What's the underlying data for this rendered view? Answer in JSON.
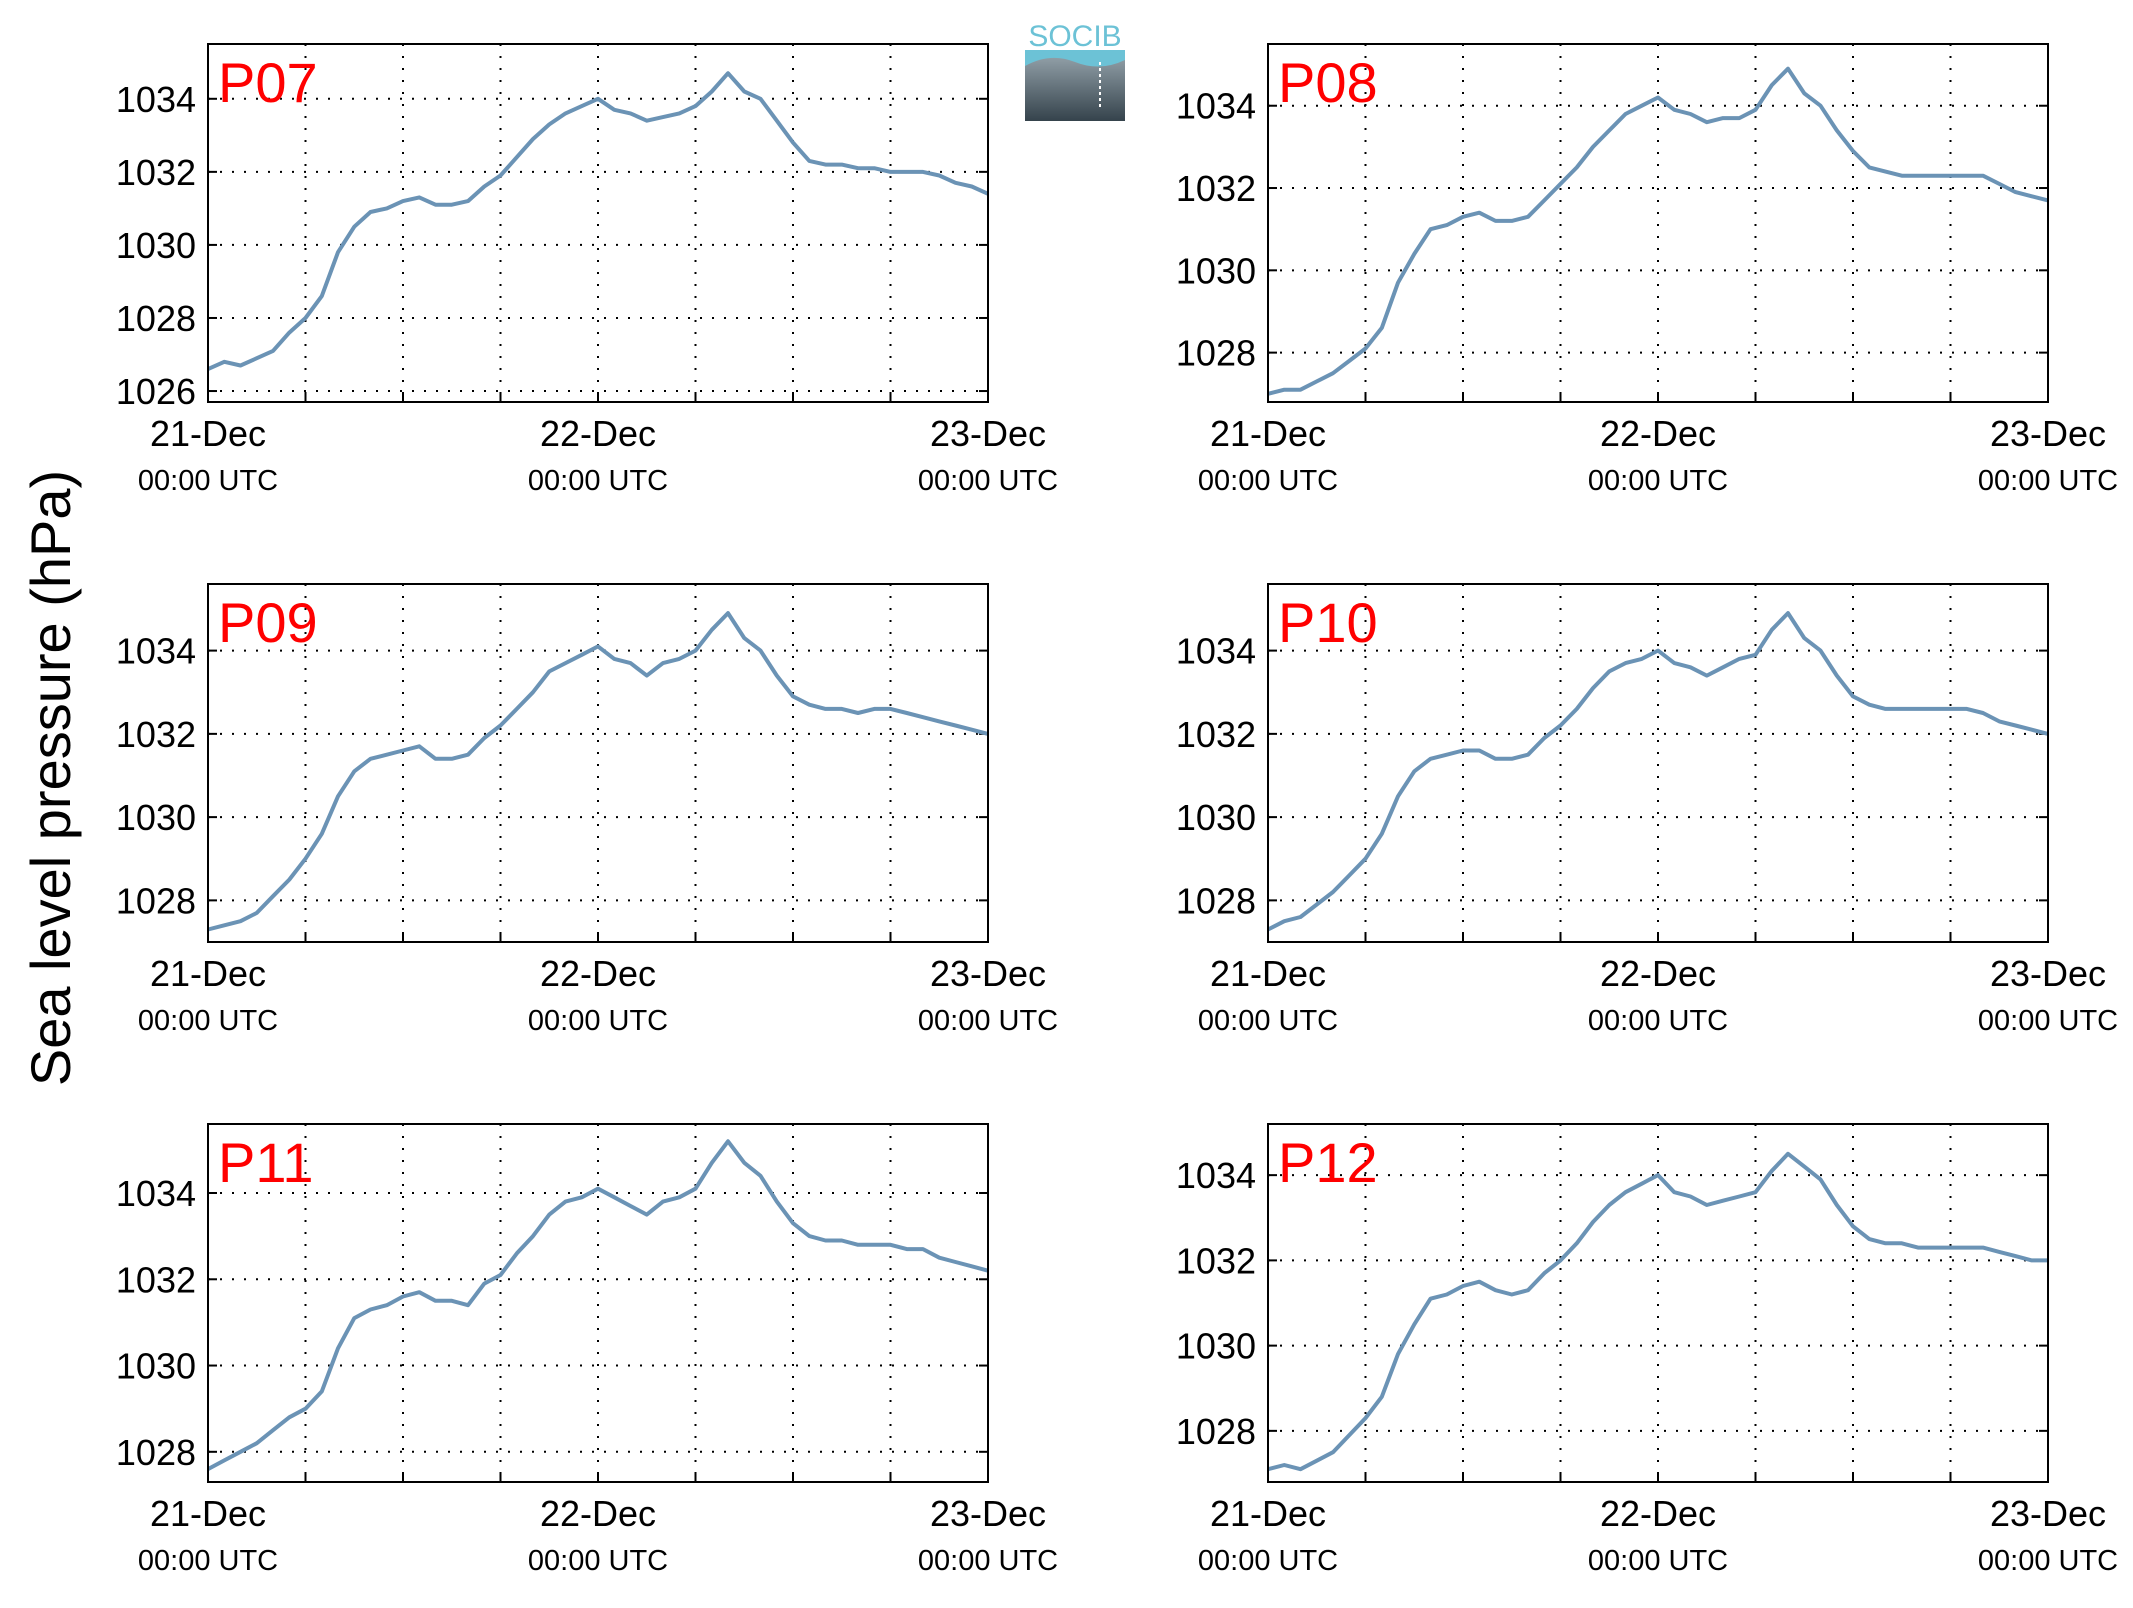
{
  "figure": {
    "ylabel": "Sea level pressure (hPa)",
    "logo_text": "SOCIB",
    "line_color": "#6b93b5",
    "label_color": "#ff0000",
    "x_ticks": [
      {
        "x": 0,
        "date": "21-Dec",
        "time": "00:00 UTC"
      },
      {
        "x": 24,
        "date": "22-Dec",
        "time": "00:00 UTC"
      },
      {
        "x": 48,
        "date": "23-Dec",
        "time": "00:00 UTC"
      }
    ]
  },
  "chart_data": [
    {
      "type": "line",
      "title": "P07",
      "xlim": [
        0,
        48
      ],
      "ylim": [
        1025.7,
        1035.5
      ],
      "yticks": [
        1026,
        1028,
        1030,
        1032,
        1034
      ],
      "x": [
        0,
        1,
        2,
        3,
        4,
        5,
        6,
        7,
        8,
        9,
        10,
        11,
        12,
        13,
        14,
        15,
        16,
        17,
        18,
        19,
        20,
        21,
        22,
        23,
        24,
        25,
        26,
        27,
        28,
        29,
        30,
        31,
        32,
        33,
        34,
        35,
        36,
        37,
        38,
        39,
        40,
        41,
        42,
        43,
        44,
        45,
        46,
        47,
        48
      ],
      "values": [
        1026.6,
        1026.8,
        1026.7,
        1026.9,
        1027.1,
        1027.6,
        1028.0,
        1028.6,
        1029.8,
        1030.5,
        1030.9,
        1031.0,
        1031.2,
        1031.3,
        1031.1,
        1031.1,
        1031.2,
        1031.6,
        1031.9,
        1032.4,
        1032.9,
        1033.3,
        1033.6,
        1033.8,
        1034.0,
        1033.7,
        1033.6,
        1033.4,
        1033.5,
        1033.6,
        1033.8,
        1034.2,
        1034.7,
        1034.2,
        1034.0,
        1033.4,
        1032.8,
        1032.3,
        1032.2,
        1032.2,
        1032.1,
        1032.1,
        1032.0,
        1032.0,
        1032.0,
        1031.9,
        1031.7,
        1031.6,
        1031.4
      ]
    },
    {
      "type": "line",
      "title": "P08",
      "xlim": [
        0,
        48
      ],
      "ylim": [
        1026.8,
        1035.5
      ],
      "yticks": [
        1028,
        1030,
        1032,
        1034
      ],
      "x": [
        0,
        1,
        2,
        3,
        4,
        5,
        6,
        7,
        8,
        9,
        10,
        11,
        12,
        13,
        14,
        15,
        16,
        17,
        18,
        19,
        20,
        21,
        22,
        23,
        24,
        25,
        26,
        27,
        28,
        29,
        30,
        31,
        32,
        33,
        34,
        35,
        36,
        37,
        38,
        39,
        40,
        41,
        42,
        43,
        44,
        45,
        46,
        47,
        48
      ],
      "values": [
        1027.0,
        1027.1,
        1027.1,
        1027.3,
        1027.5,
        1027.8,
        1028.1,
        1028.6,
        1029.7,
        1030.4,
        1031.0,
        1031.1,
        1031.3,
        1031.4,
        1031.2,
        1031.2,
        1031.3,
        1031.7,
        1032.1,
        1032.5,
        1033.0,
        1033.4,
        1033.8,
        1034.0,
        1034.2,
        1033.9,
        1033.8,
        1033.6,
        1033.7,
        1033.7,
        1033.9,
        1034.5,
        1034.9,
        1034.3,
        1034.0,
        1033.4,
        1032.9,
        1032.5,
        1032.4,
        1032.3,
        1032.3,
        1032.3,
        1032.3,
        1032.3,
        1032.3,
        1032.1,
        1031.9,
        1031.8,
        1031.7
      ]
    },
    {
      "type": "line",
      "title": "P09",
      "xlim": [
        0,
        48
      ],
      "ylim": [
        1027.0,
        1035.6
      ],
      "yticks": [
        1028,
        1030,
        1032,
        1034
      ],
      "x": [
        0,
        1,
        2,
        3,
        4,
        5,
        6,
        7,
        8,
        9,
        10,
        11,
        12,
        13,
        14,
        15,
        16,
        17,
        18,
        19,
        20,
        21,
        22,
        23,
        24,
        25,
        26,
        27,
        28,
        29,
        30,
        31,
        32,
        33,
        34,
        35,
        36,
        37,
        38,
        39,
        40,
        41,
        42,
        43,
        44,
        45,
        46,
        47,
        48
      ],
      "values": [
        1027.3,
        1027.4,
        1027.5,
        1027.7,
        1028.1,
        1028.5,
        1029.0,
        1029.6,
        1030.5,
        1031.1,
        1031.4,
        1031.5,
        1031.6,
        1031.7,
        1031.4,
        1031.4,
        1031.5,
        1031.9,
        1032.2,
        1032.6,
        1033.0,
        1033.5,
        1033.7,
        1033.9,
        1034.1,
        1033.8,
        1033.7,
        1033.4,
        1033.7,
        1033.8,
        1034.0,
        1034.5,
        1034.9,
        1034.3,
        1034.0,
        1033.4,
        1032.9,
        1032.7,
        1032.6,
        1032.6,
        1032.5,
        1032.6,
        1032.6,
        1032.5,
        1032.4,
        1032.3,
        1032.2,
        1032.1,
        1032.0
      ]
    },
    {
      "type": "line",
      "title": "P10",
      "xlim": [
        0,
        48
      ],
      "ylim": [
        1027.0,
        1035.6
      ],
      "yticks": [
        1028,
        1030,
        1032,
        1034
      ],
      "x": [
        0,
        1,
        2,
        3,
        4,
        5,
        6,
        7,
        8,
        9,
        10,
        11,
        12,
        13,
        14,
        15,
        16,
        17,
        18,
        19,
        20,
        21,
        22,
        23,
        24,
        25,
        26,
        27,
        28,
        29,
        30,
        31,
        32,
        33,
        34,
        35,
        36,
        37,
        38,
        39,
        40,
        41,
        42,
        43,
        44,
        45,
        46,
        47,
        48
      ],
      "values": [
        1027.3,
        1027.5,
        1027.6,
        1027.9,
        1028.2,
        1028.6,
        1029.0,
        1029.6,
        1030.5,
        1031.1,
        1031.4,
        1031.5,
        1031.6,
        1031.6,
        1031.4,
        1031.4,
        1031.5,
        1031.9,
        1032.2,
        1032.6,
        1033.1,
        1033.5,
        1033.7,
        1033.8,
        1034.0,
        1033.7,
        1033.6,
        1033.4,
        1033.6,
        1033.8,
        1033.9,
        1034.5,
        1034.9,
        1034.3,
        1034.0,
        1033.4,
        1032.9,
        1032.7,
        1032.6,
        1032.6,
        1032.6,
        1032.6,
        1032.6,
        1032.6,
        1032.5,
        1032.3,
        1032.2,
        1032.1,
        1032.0
      ]
    },
    {
      "type": "line",
      "title": "P11",
      "xlim": [
        0,
        48
      ],
      "ylim": [
        1027.3,
        1035.6
      ],
      "yticks": [
        1028,
        1030,
        1032,
        1034
      ],
      "x": [
        0,
        1,
        2,
        3,
        4,
        5,
        6,
        7,
        8,
        9,
        10,
        11,
        12,
        13,
        14,
        15,
        16,
        17,
        18,
        19,
        20,
        21,
        22,
        23,
        24,
        25,
        26,
        27,
        28,
        29,
        30,
        31,
        32,
        33,
        34,
        35,
        36,
        37,
        38,
        39,
        40,
        41,
        42,
        43,
        44,
        45,
        46,
        47,
        48
      ],
      "values": [
        1027.6,
        1027.8,
        1028.0,
        1028.2,
        1028.5,
        1028.8,
        1029.0,
        1029.4,
        1030.4,
        1031.1,
        1031.3,
        1031.4,
        1031.6,
        1031.7,
        1031.5,
        1031.5,
        1031.4,
        1031.9,
        1032.1,
        1032.6,
        1033.0,
        1033.5,
        1033.8,
        1033.9,
        1034.1,
        1033.9,
        1033.7,
        1033.5,
        1033.8,
        1033.9,
        1034.1,
        1034.7,
        1035.2,
        1034.7,
        1034.4,
        1033.8,
        1033.3,
        1033.0,
        1032.9,
        1032.9,
        1032.8,
        1032.8,
        1032.8,
        1032.7,
        1032.7,
        1032.5,
        1032.4,
        1032.3,
        1032.2
      ]
    },
    {
      "type": "line",
      "title": "P12",
      "xlim": [
        0,
        48
      ],
      "ylim": [
        1026.8,
        1035.2
      ],
      "yticks": [
        1028,
        1030,
        1032,
        1034
      ],
      "x": [
        0,
        1,
        2,
        3,
        4,
        5,
        6,
        7,
        8,
        9,
        10,
        11,
        12,
        13,
        14,
        15,
        16,
        17,
        18,
        19,
        20,
        21,
        22,
        23,
        24,
        25,
        26,
        27,
        28,
        29,
        30,
        31,
        32,
        33,
        34,
        35,
        36,
        37,
        38,
        39,
        40,
        41,
        42,
        43,
        44,
        45,
        46,
        47,
        48
      ],
      "values": [
        1027.1,
        1027.2,
        1027.1,
        1027.3,
        1027.5,
        1027.9,
        1028.3,
        1028.8,
        1029.8,
        1030.5,
        1031.1,
        1031.2,
        1031.4,
        1031.5,
        1031.3,
        1031.2,
        1031.3,
        1031.7,
        1032.0,
        1032.4,
        1032.9,
        1033.3,
        1033.6,
        1033.8,
        1034.0,
        1033.6,
        1033.5,
        1033.3,
        1033.4,
        1033.5,
        1033.6,
        1034.1,
        1034.5,
        1034.2,
        1033.9,
        1033.3,
        1032.8,
        1032.5,
        1032.4,
        1032.4,
        1032.3,
        1032.3,
        1032.3,
        1032.3,
        1032.3,
        1032.2,
        1032.1,
        1032.0,
        1032.0
      ]
    }
  ]
}
